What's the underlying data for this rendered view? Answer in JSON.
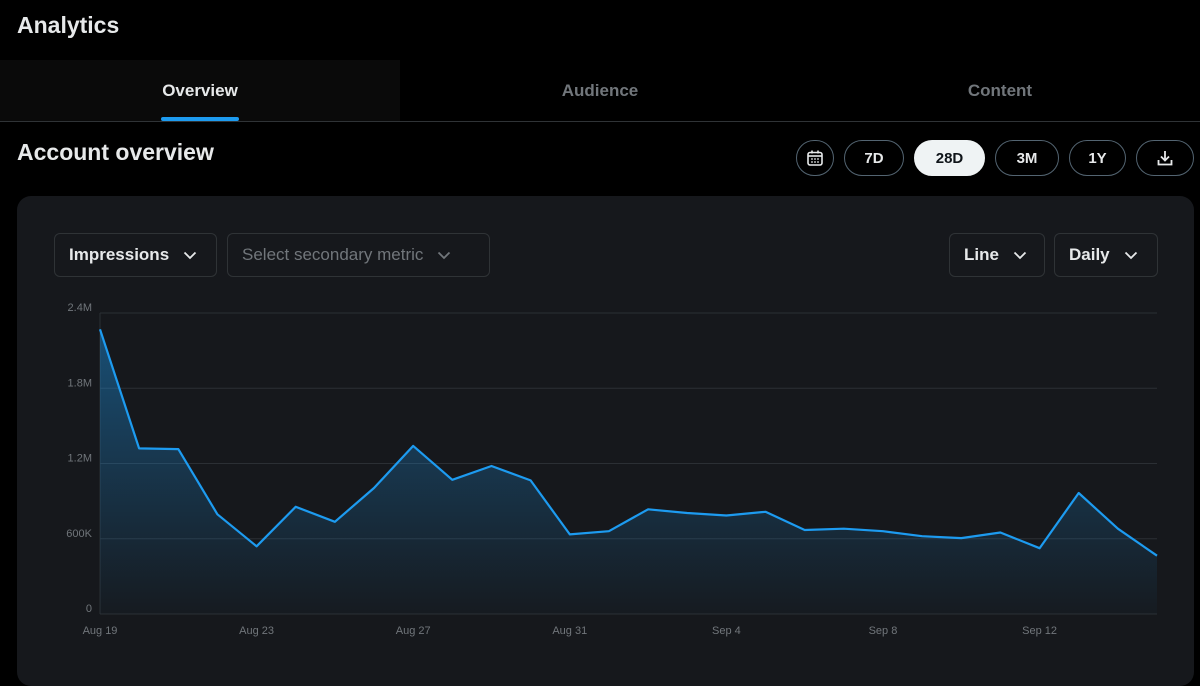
{
  "header": {
    "title": "Analytics"
  },
  "tabs": [
    {
      "label": "Overview",
      "active": true
    },
    {
      "label": "Audience",
      "active": false
    },
    {
      "label": "Content",
      "active": false
    }
  ],
  "section": {
    "title": "Account overview"
  },
  "range": {
    "calendar_icon": "calendar-icon",
    "options": [
      "7D",
      "28D",
      "3M",
      "1Y"
    ],
    "selected": "28D",
    "download_icon": "download-icon"
  },
  "controls": {
    "primary_metric": "Impressions",
    "secondary_metric_placeholder": "Select secondary metric",
    "chart_type": "Line",
    "granularity": "Daily"
  },
  "colors": {
    "accent": "#1d9bf0",
    "line": "#1d9bf0",
    "card": "#16181c"
  },
  "chart_data": {
    "type": "area",
    "x": [
      "Aug 19",
      "Aug 20",
      "Aug 21",
      "Aug 22",
      "Aug 23",
      "Aug 24",
      "Aug 25",
      "Aug 26",
      "Aug 27",
      "Aug 28",
      "Aug 29",
      "Aug 30",
      "Aug 31",
      "Sep 1",
      "Sep 2",
      "Sep 3",
      "Sep 4",
      "Sep 5",
      "Sep 6",
      "Sep 7",
      "Sep 8",
      "Sep 9",
      "Sep 10",
      "Sep 11",
      "Sep 12",
      "Sep 13",
      "Sep 14",
      "Sep 15"
    ],
    "series": [
      {
        "values": [
          2270000,
          1320000,
          1315000,
          795000,
          540000,
          855000,
          735000,
          1005000,
          1340000,
          1070000,
          1180000,
          1065000,
          635000,
          660000,
          835000,
          805000,
          785000,
          815000,
          670000,
          680000,
          660000,
          620000,
          605000,
          650000,
          525000,
          965000,
          680000,
          465000
        ]
      }
    ],
    "x_tick_labels": [
      "Aug 19",
      "Aug 23",
      "Aug 27",
      "Aug 31",
      "Sep 4",
      "Sep 8",
      "Sep 12"
    ],
    "y_tick_labels": [
      "0",
      "600K",
      "1.2M",
      "1.8M",
      "2.4M"
    ],
    "y_ticks": [
      0,
      600000,
      1200000,
      1800000,
      2400000
    ],
    "ylim": [
      0,
      2400000
    ],
    "grid": true,
    "title": "",
    "xlabel": "",
    "ylabel": ""
  }
}
